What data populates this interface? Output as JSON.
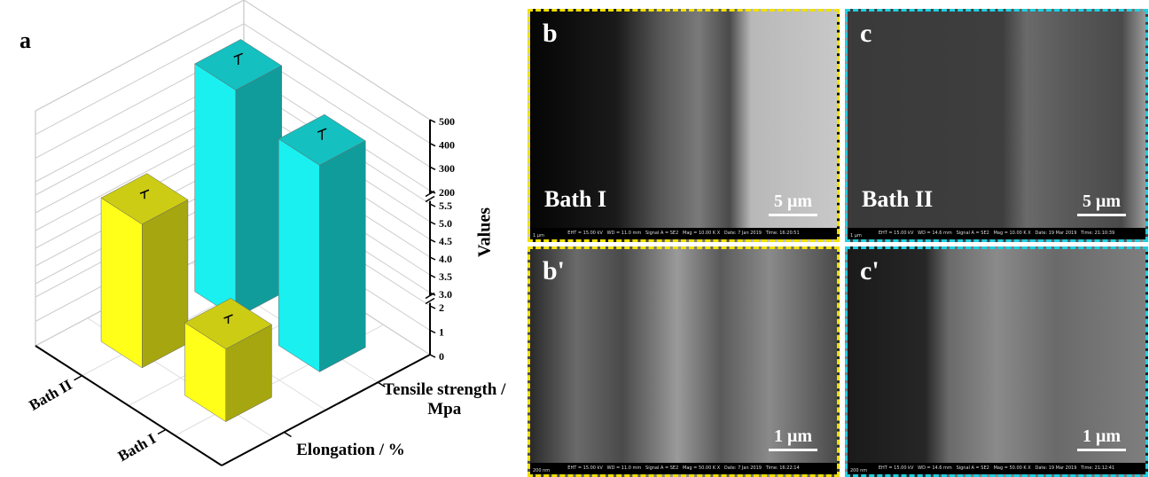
{
  "chart_data": {
    "type": "bar3d",
    "panel_label": "a",
    "y_title": "Values",
    "categories": [
      "Elongation / %",
      "Tensile strength / Mpa"
    ],
    "colors": [
      "#ffff1a",
      "#1af0f0"
    ],
    "series": [
      {
        "name": "Bath II",
        "values": [
          5.3,
          470
        ],
        "errors": [
          0.2,
          40
        ]
      },
      {
        "name": "Bath I",
        "values": [
          3.3,
          380
        ],
        "errors": [
          0.2,
          40
        ]
      }
    ],
    "y_segments": [
      [
        0,
        2
      ],
      [
        3,
        5.5
      ],
      [
        200,
        500
      ]
    ],
    "yticks": [
      0,
      1,
      2,
      {
        "value": 3,
        "label": "3.0"
      },
      3.5,
      {
        "value": 4,
        "label": "4.0"
      },
      4.5,
      {
        "value": 5,
        "label": "5.0"
      },
      5.5,
      200,
      300,
      400,
      500
    ],
    "grid": true
  },
  "images": [
    {
      "label": "b",
      "caption": "Bath I",
      "scale": "5 μm",
      "corner": "1 μm",
      "border": "#f0e000",
      "info": "EHT = 15.00 kV   WD = 11.0 mm   Signal A = SE2   Mag = 10.00 K X   Date: 7 Jan 2019   Time: 16:20:51"
    },
    {
      "label": "c",
      "caption": "Bath II",
      "scale": "5 μm",
      "corner": "1 μm",
      "border": "#20d0e0",
      "info": "EHT = 15.00 kV   WD = 14.6 mm   Signal A = SE2   Mag = 10.00 K X   Date: 19 Mar 2019   Time: 21:10:39"
    },
    {
      "label": "b'",
      "scale": "1 μm",
      "corner": "200 nm",
      "border": "#f0e000",
      "info": "EHT = 15.00 kV   WD = 11.0 mm   Signal A = SE2   Mag = 50.00 K X   Date: 7 Jan 2019   Time: 16:22:14"
    },
    {
      "label": "c'",
      "scale": "1 μm",
      "corner": "200 nm",
      "border": "#20d0e0",
      "info": "EHT = 15.00 kV   WD = 14.6 mm   Signal A = SE2   Mag = 50.00 K X   Date: 19 Mar 2019   Time: 21:12:41"
    }
  ]
}
